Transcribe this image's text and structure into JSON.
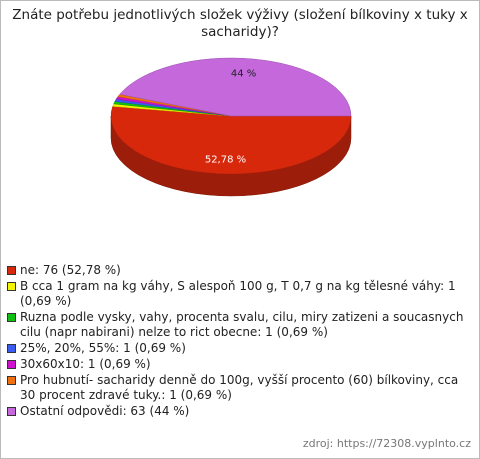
{
  "chart_data": {
    "type": "pie",
    "title": "Znáte potřebu jednotlivých složek výživy (složení bílkoviny x tuky x sacharidy)?",
    "series": [
      {
        "name": "ne: 76 (52,78 %)",
        "color": "#d8280c",
        "values": [
          52.78
        ],
        "value_labels": [
          "52,78 %"
        ]
      },
      {
        "name": "B cca 1 gram na kg váhy, S alespoň 100 g, T 0,7 g na kg tělesné váhy: 1 (0,69 %)",
        "color": "#f4f400",
        "values": [
          0.69
        ]
      },
      {
        "name": "Ruzna podle vysky, vahy, procenta svalu, cilu, miry zatizeni a soucasnych cilu (napr nabirani) nelze to rict obecne: 1 (0,69 %)",
        "color": "#10c010",
        "values": [
          0.69
        ]
      },
      {
        "name": "25%, 20%, 55%: 1 (0,69 %)",
        "color": "#3a5cf0",
        "values": [
          0.69
        ]
      },
      {
        "name": "30x60x10: 1 (0,69 %)",
        "color": "#d010d0",
        "values": [
          0.69
        ]
      },
      {
        "name": "Pro hubnutí- sacharidy denně do 100g, vyšší procento (60) bílkoviny, cca 30 procent zdravé tuky.: 1 (0,69 %)",
        "color": "#f07010",
        "values": [
          0.69
        ]
      },
      {
        "name": "Ostatní odpovědi: 63 (44 %)",
        "color": "#c468dc",
        "values": [
          44
        ],
        "value_labels": [
          "44 %"
        ]
      }
    ],
    "source": "zdroj: https://72308.vyplnto.cz"
  }
}
